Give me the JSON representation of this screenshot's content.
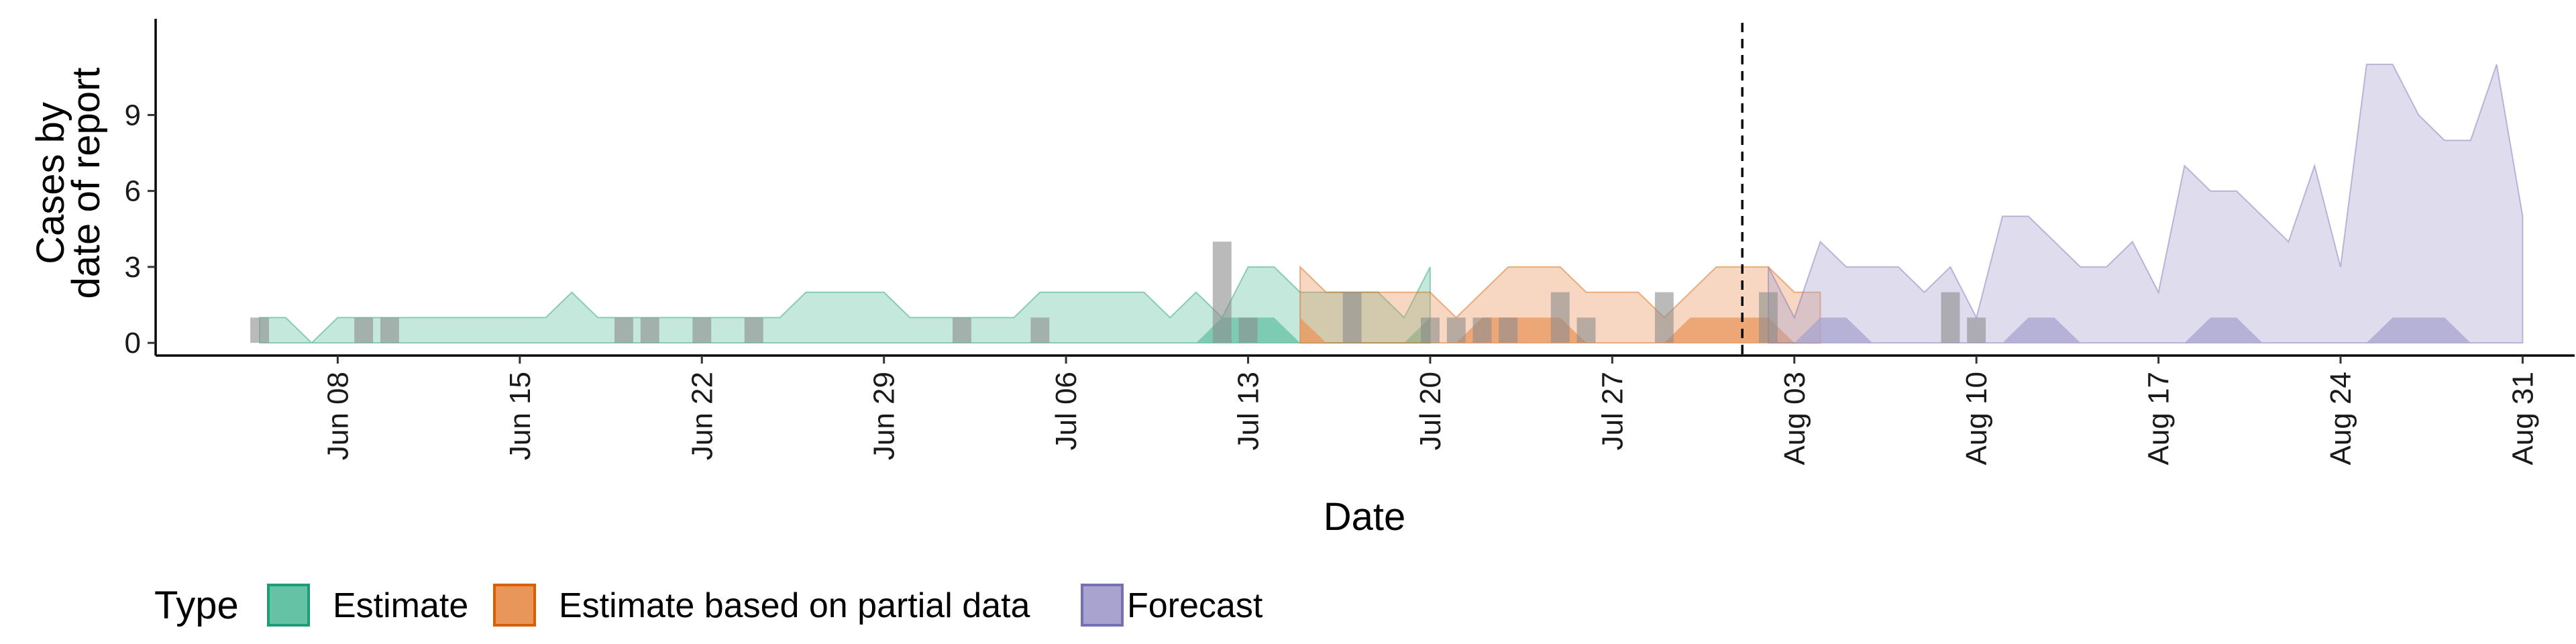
{
  "chart_data": {
    "type": "area",
    "x_type": "date",
    "xlabel": "Date",
    "ylabel_lines": [
      "Cases by",
      "date of report"
    ],
    "ylim": [
      -0.5,
      12.8
    ],
    "xlim": [
      "2020-06-01",
      "2020-09-02"
    ],
    "y_ticks": [
      0,
      3,
      6,
      9
    ],
    "x_ticks": [
      {
        "date": "2020-06-08",
        "label": "Jun 08"
      },
      {
        "date": "2020-06-15",
        "label": "Jun 15"
      },
      {
        "date": "2020-06-22",
        "label": "Jun 22"
      },
      {
        "date": "2020-06-29",
        "label": "Jun 29"
      },
      {
        "date": "2020-07-06",
        "label": "Jul 06"
      },
      {
        "date": "2020-07-13",
        "label": "Jul 13"
      },
      {
        "date": "2020-07-20",
        "label": "Jul 20"
      },
      {
        "date": "2020-07-27",
        "label": "Jul 27"
      },
      {
        "date": "2020-08-03",
        "label": "Aug 03"
      },
      {
        "date": "2020-08-10",
        "label": "Aug 10"
      },
      {
        "date": "2020-08-17",
        "label": "Aug 17"
      },
      {
        "date": "2020-08-24",
        "label": "Aug 24"
      },
      {
        "date": "2020-08-31",
        "label": "Aug 31"
      }
    ],
    "vline_date": "2020-08-01",
    "grid": false,
    "legend": {
      "position": "bottom",
      "title": "Type",
      "entries": [
        {
          "label": "Estimate",
          "fill": "#66c2a5",
          "stroke": "#1b9e77"
        },
        {
          "label": "Estimate based on partial data",
          "fill": "#e9965b",
          "stroke": "#d95f02"
        },
        {
          "label": "Forecast",
          "fill": "#a8a4cf",
          "stroke": "#7570b3"
        }
      ]
    },
    "series": [
      {
        "type": "Estimate",
        "color": "#1b9e77",
        "fill": "#66c2a5",
        "start": "2020-06-05",
        "upper": [
          1,
          1,
          0,
          1,
          1,
          1,
          1,
          1,
          1,
          1,
          1,
          1,
          2,
          1,
          1,
          1,
          1,
          1,
          1,
          1,
          1,
          2,
          2,
          2,
          2,
          1,
          1,
          1,
          1,
          1,
          2,
          2,
          2,
          2,
          2,
          1,
          2,
          1,
          3,
          3,
          2,
          2,
          2,
          2,
          1,
          3
        ],
        "lower": [
          0,
          0,
          0,
          0,
          0,
          0,
          0,
          0,
          0,
          0,
          0,
          0,
          0,
          0,
          0,
          0,
          0,
          0,
          0,
          0,
          0,
          0,
          0,
          0,
          0,
          0,
          0,
          0,
          0,
          0,
          0,
          0,
          0,
          0,
          0,
          0,
          0,
          0,
          0,
          0,
          0,
          0,
          0,
          0,
          0,
          0
        ],
        "inner_upper": [
          0,
          0,
          0,
          0,
          0,
          0,
          0,
          0,
          0,
          0,
          0,
          0,
          0,
          0,
          0,
          0,
          0,
          0,
          0,
          0,
          0,
          0,
          0,
          0,
          0,
          0,
          0,
          0,
          0,
          0,
          0,
          0,
          0,
          0,
          0,
          0,
          0,
          1,
          1,
          1,
          0,
          0,
          0,
          0,
          0,
          1
        ]
      },
      {
        "type": "Estimate based on partial data",
        "color": "#d95f02",
        "fill": "#e9965b",
        "start": "2020-07-15",
        "upper": [
          3,
          2,
          2,
          2,
          2,
          2,
          1,
          2,
          3,
          3,
          3,
          2,
          2,
          2,
          1,
          2,
          3,
          3,
          3,
          2,
          2
        ],
        "lower": [
          0,
          0,
          0,
          0,
          0,
          0,
          0,
          0,
          0,
          0,
          0,
          0,
          0,
          0,
          0,
          0,
          0,
          0,
          0,
          0,
          0
        ],
        "inner_upper": [
          1,
          0,
          0,
          0,
          0,
          0,
          0,
          1,
          1,
          1,
          1,
          0,
          0,
          0,
          0,
          1,
          1,
          1,
          1,
          0,
          0
        ]
      },
      {
        "type": "Forecast",
        "color": "#7570b3",
        "fill": "#a8a4cf",
        "start": "2020-08-02",
        "upper": [
          3,
          1,
          4,
          3,
          3,
          3,
          2,
          3,
          1,
          5,
          5,
          4,
          3,
          3,
          4,
          2,
          7,
          6,
          6,
          5,
          4,
          7,
          3,
          11,
          11,
          9,
          8,
          8,
          11,
          5
        ],
        "lower": [
          0,
          0,
          0,
          0,
          0,
          0,
          0,
          0,
          0,
          0,
          0,
          0,
          0,
          0,
          0,
          0,
          0,
          0,
          0,
          0,
          0,
          0,
          0,
          0,
          0,
          0,
          0,
          0,
          0,
          0
        ],
        "inner_upper": [
          0,
          0,
          1,
          1,
          0,
          0,
          0,
          0,
          0,
          0,
          1,
          1,
          0,
          0,
          0,
          0,
          0,
          1,
          1,
          0,
          0,
          0,
          0,
          0,
          1,
          1,
          1,
          0,
          0,
          0
        ]
      }
    ],
    "reported_cases": {
      "color": "#8c8c8c",
      "start": "2020-06-05",
      "values": [
        1,
        0,
        0,
        0,
        1,
        1,
        0,
        0,
        0,
        0,
        0,
        0,
        0,
        0,
        1,
        1,
        0,
        1,
        0,
        1,
        0,
        0,
        0,
        0,
        0,
        0,
        0,
        1,
        0,
        0,
        1,
        0,
        0,
        0,
        0,
        0,
        0,
        4,
        1,
        0,
        0,
        0,
        2,
        0,
        0,
        1,
        1,
        1,
        1,
        0,
        2,
        1,
        0,
        0,
        2,
        0,
        0,
        0,
        2,
        0,
        0,
        0,
        0,
        0,
        0,
        2,
        1,
        0,
        0
      ]
    }
  }
}
